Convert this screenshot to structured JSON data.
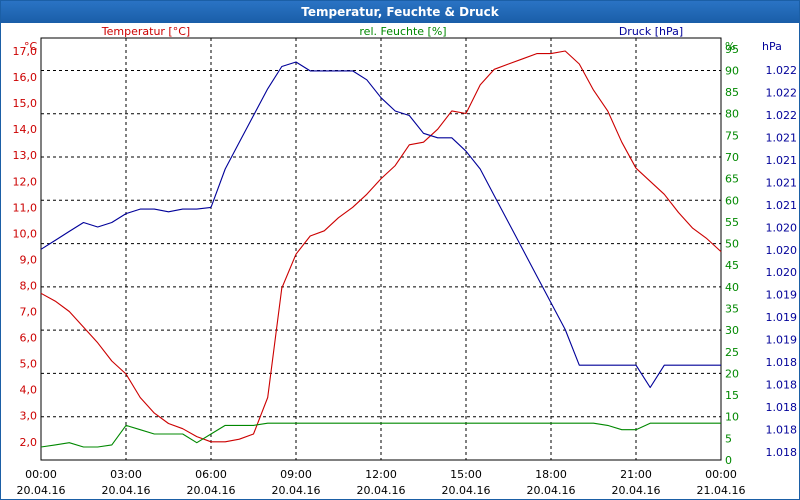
{
  "window": {
    "title": "Temperatur, Feuchte & Druck"
  },
  "colors": {
    "temperature": "#cc0000",
    "humidity": "#008800",
    "pressure": "#000099",
    "grid": "#000000",
    "title_bg": "#1f64b0"
  },
  "chart_data": {
    "type": "line",
    "title": "Temperatur, Feuchte & Druck",
    "x_labels": [
      [
        "00:00",
        "20.04.16"
      ],
      [
        "03:00",
        "20.04.16"
      ],
      [
        "06:00",
        "20.04.16"
      ],
      [
        "09:00",
        "20.04.16"
      ],
      [
        "12:00",
        "20.04.16"
      ],
      [
        "15:00",
        "20.04.16"
      ],
      [
        "18:00",
        "20.04.16"
      ],
      [
        "21:00",
        "20.04.16"
      ],
      [
        "00:00",
        "21.04.16"
      ]
    ],
    "x_range": [
      0,
      24
    ],
    "axes": {
      "left": {
        "label": "Temperatur [°C]",
        "unit": "°C",
        "range": [
          1.3,
          17.5
        ],
        "ticks": [
          "17,0",
          "16,0",
          "15,0",
          "14,0",
          "13,0",
          "12,0",
          "11,0",
          "10,0",
          "9,0",
          "8,0",
          "7,0",
          "6,0",
          "5,0",
          "4,0",
          "3,0",
          "2,0"
        ],
        "tick_values": [
          17,
          16,
          15,
          14,
          13,
          12,
          11,
          10,
          9,
          8,
          7,
          6,
          5,
          4,
          3,
          2
        ]
      },
      "middle": {
        "label": "rel. Feuchte [%]",
        "unit": "%",
        "range": [
          0,
          97.5
        ],
        "ticks": [
          "95",
          "90",
          "85",
          "80",
          "75",
          "70",
          "65",
          "60",
          "55",
          "50",
          "45",
          "40",
          "35",
          "30",
          "25",
          "20",
          "15",
          "10",
          "5",
          "0"
        ],
        "tick_values": [
          95,
          90,
          85,
          80,
          75,
          70,
          65,
          60,
          55,
          50,
          45,
          40,
          35,
          30,
          25,
          20,
          15,
          10,
          5,
          0
        ]
      },
      "right": {
        "label": "Druck [hPa]",
        "unit": "hPa",
        "ticks": [
          "1.022",
          "1.022",
          "1.022",
          "1.021",
          "1.021",
          "1.021",
          "1.021",
          "1.020",
          "1.020",
          "1.020",
          "1.019",
          "1.019",
          "1.019",
          "1.018",
          "1.018",
          "1.018",
          "1.018",
          "1.018"
        ]
      }
    },
    "series": [
      {
        "name": "Temperatur",
        "axis": "left",
        "unit": "°C",
        "x": [
          0,
          0.5,
          1,
          1.5,
          2,
          2.5,
          3,
          3.5,
          4,
          4.5,
          5,
          5.5,
          6,
          6.5,
          7,
          7.5,
          8,
          8.5,
          9,
          9.5,
          10,
          10.5,
          11,
          11.5,
          12,
          12.5,
          13,
          13.5,
          14,
          14.5,
          15,
          15.5,
          16,
          16.5,
          17,
          17.5,
          18,
          18.5,
          19,
          19.5,
          20,
          20.5,
          21,
          21.5,
          22,
          22.5,
          23,
          23.5,
          24
        ],
        "values": [
          7.7,
          7.4,
          7,
          6.4,
          5.8,
          5.1,
          4.6,
          3.7,
          3.1,
          2.7,
          2.5,
          2.2,
          2.0,
          2.0,
          2.1,
          2.3,
          3.7,
          7.9,
          9.2,
          9.9,
          10.1,
          10.6,
          11.0,
          11.5,
          12.1,
          12.6,
          13.4,
          13.5,
          14.0,
          14.7,
          14.6,
          15.7,
          16.3,
          16.5,
          16.7,
          16.9,
          16.9,
          17.0,
          16.5,
          15.5,
          14.7,
          13.5,
          12.5,
          12.0,
          11.5,
          10.8,
          10.2,
          9.8,
          9.3
        ]
      },
      {
        "name": "rel. Feuchte",
        "axis": "middle",
        "unit": "%",
        "x": [
          0,
          0.5,
          1,
          1.5,
          2,
          2.5,
          3,
          3.5,
          4,
          4.5,
          5,
          5.5,
          6,
          6.5,
          7,
          7.5,
          8,
          8.5,
          9,
          9.5,
          10,
          10.5,
          11,
          11.5,
          12,
          12.5,
          13,
          13.5,
          14,
          14.5,
          15,
          15.5,
          16,
          16.5,
          17,
          17.5,
          18,
          18.5,
          19,
          19.5,
          20,
          20.5,
          21,
          21.5,
          22,
          22.5,
          23,
          23.5,
          24
        ],
        "values": [
          3,
          3.5,
          4,
          3,
          3,
          3.5,
          8,
          7,
          6,
          6,
          6,
          4,
          6,
          8,
          8,
          8,
          8.5,
          8.5,
          8.5,
          8.5,
          8.5,
          8.5,
          8.5,
          8.5,
          8.5,
          8.5,
          8.5,
          8.5,
          8.5,
          8.5,
          8.5,
          8.5,
          8.5,
          8.5,
          8.5,
          8.5,
          8.5,
          8.5,
          8.5,
          8.5,
          8,
          7,
          7,
          8.5,
          8.5,
          8.5,
          8.5,
          8.5,
          8.5
        ]
      },
      {
        "name": "Druck",
        "axis": "right",
        "unit": "hPa",
        "x": [
          0,
          0.5,
          1,
          1.5,
          2,
          2.5,
          3,
          3.5,
          4,
          4.5,
          5,
          5.5,
          6,
          6.5,
          7,
          7.5,
          8,
          8.5,
          9,
          9.5,
          10,
          10.5,
          11,
          11.5,
          12,
          12.5,
          13,
          13.5,
          14,
          14.5,
          15,
          15.5,
          16,
          16.5,
          17,
          17.5,
          18,
          18.5,
          19,
          19.5,
          20,
          20.5,
          21,
          21.5,
          22,
          22.5,
          23,
          23.5,
          24
        ],
        "values": [
          1020.0,
          1020.1,
          1020.2,
          1020.3,
          1020.25,
          1020.3,
          1020.4,
          1020.45,
          1020.45,
          1020.42,
          1020.45,
          1020.45,
          1020.47,
          1020.9,
          1021.2,
          1021.5,
          1021.8,
          1022.05,
          1022.1,
          1022.0,
          1022.0,
          1022.0,
          1022.0,
          1021.9,
          1021.7,
          1021.55,
          1021.5,
          1021.3,
          1021.25,
          1021.25,
          1021.1,
          1020.9,
          1020.6,
          1020.3,
          1020.0,
          1019.7,
          1019.4,
          1019.1,
          1018.7,
          1018.7,
          1018.7,
          1018.7,
          1018.7,
          1018.45,
          1018.7,
          1018.7,
          1018.7,
          1018.7,
          1018.7
        ]
      }
    ]
  }
}
